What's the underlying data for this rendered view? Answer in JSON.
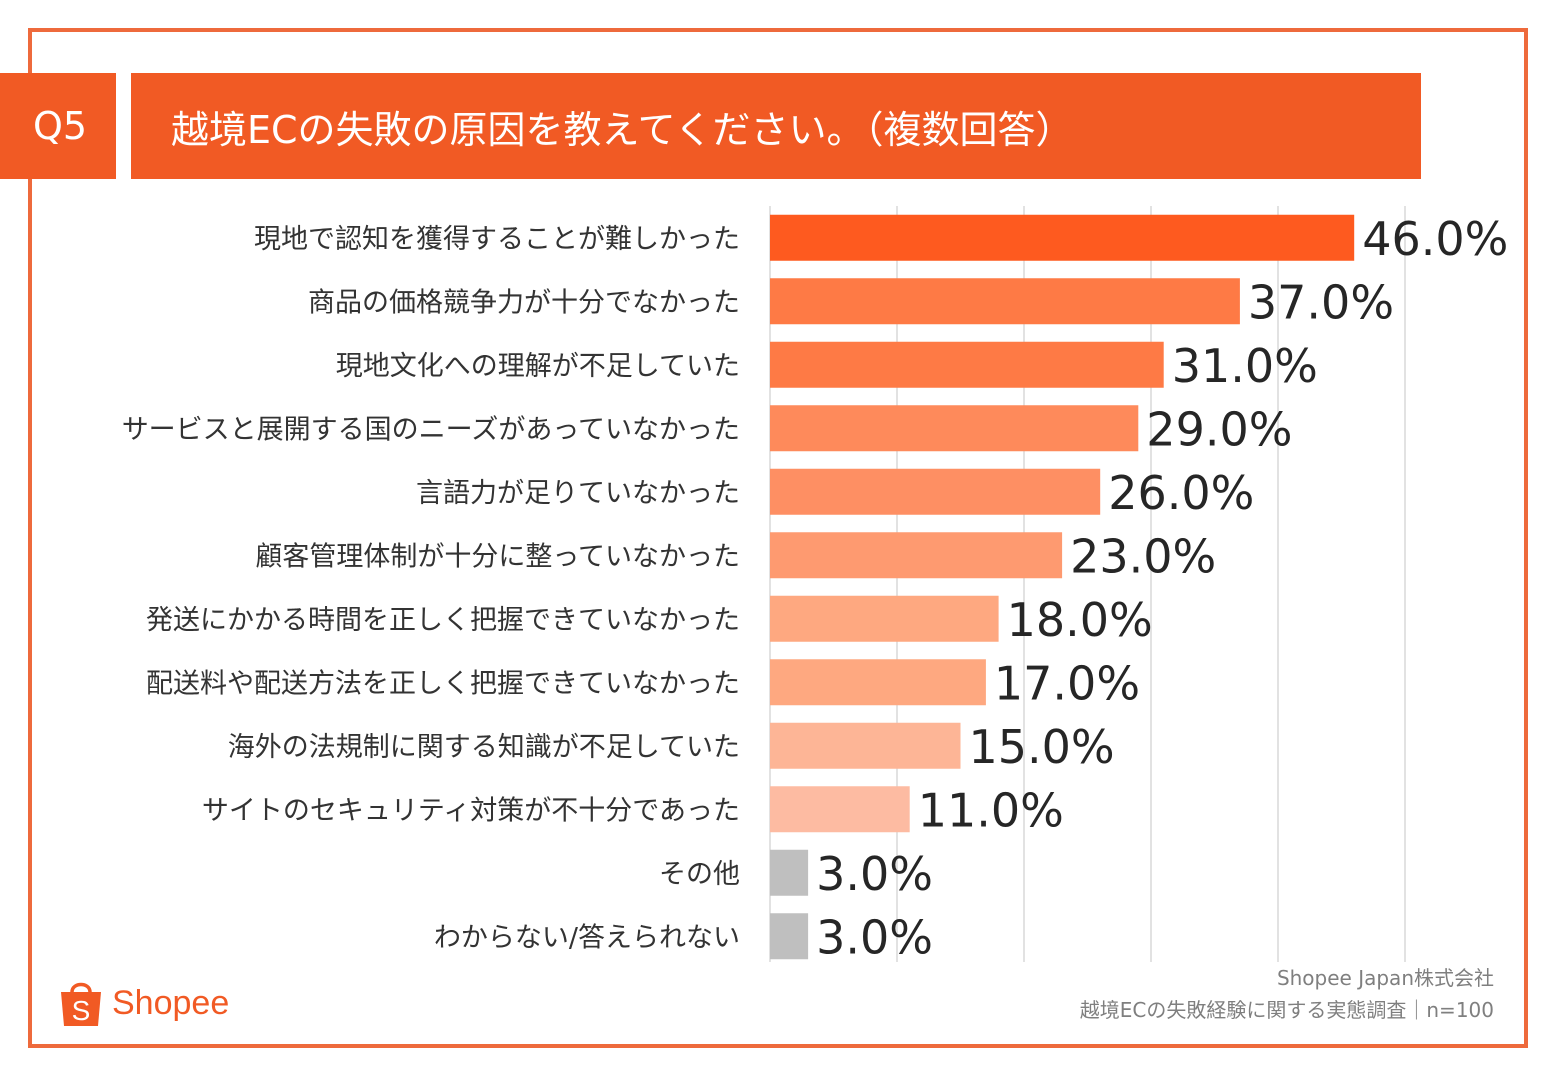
{
  "header": {
    "question_no": "Q5",
    "title": "越境ECの失敗の原因を教えてください。（複数回答）"
  },
  "chart_data": {
    "type": "bar",
    "orientation": "horizontal",
    "title": "越境ECの失敗の原因を教えてください。（複数回答）",
    "unit": "%",
    "xlim": [
      0,
      50
    ],
    "grid": true,
    "categories": [
      "現地で認知を獲得することが難しかった",
      "商品の価格競争力が十分でなかった",
      "現地文化への理解が不足していた",
      "サービスと展開する国のニーズがあっていなかった",
      "言語力が足りていなかった",
      "顧客管理体制が十分に整っていなかった",
      "発送にかかる時間を正しく把握できていなかった",
      "配送料や配送方法を正しく把握できていなかった",
      "海外の法規制に関する知識が不足していた",
      "サイトのセキュリティ対策が不十分であった",
      "その他",
      "わからない/答えられない"
    ],
    "values": [
      46.0,
      37.0,
      31.0,
      29.0,
      26.0,
      23.0,
      18.0,
      17.0,
      15.0,
      11.0,
      3.0,
      3.0
    ],
    "value_labels": [
      "46.0%",
      "37.0%",
      "31.0%",
      "29.0%",
      "26.0%",
      "23.0%",
      "18.0%",
      "17.0%",
      "15.0%",
      "11.0%",
      "3.0%",
      "3.0%"
    ],
    "colors": [
      "#fe5a1f",
      "#fe7a45",
      "#fe7a45",
      "#fe8a5b",
      "#fe8f63",
      "#fe9a70",
      "#fea880",
      "#fea880",
      "#fdb596",
      "#fdbba2",
      "#bfbfbf",
      "#bfbfbf"
    ]
  },
  "branding": {
    "logo_text": "Shopee",
    "logo_icon": "shopping-bag-icon",
    "logo_letter": "S",
    "brand_color": "#f15a24"
  },
  "source": {
    "company": "Shopee Japan株式会社",
    "survey": "越境ECの失敗経験に関する実態調査｜n=100"
  }
}
